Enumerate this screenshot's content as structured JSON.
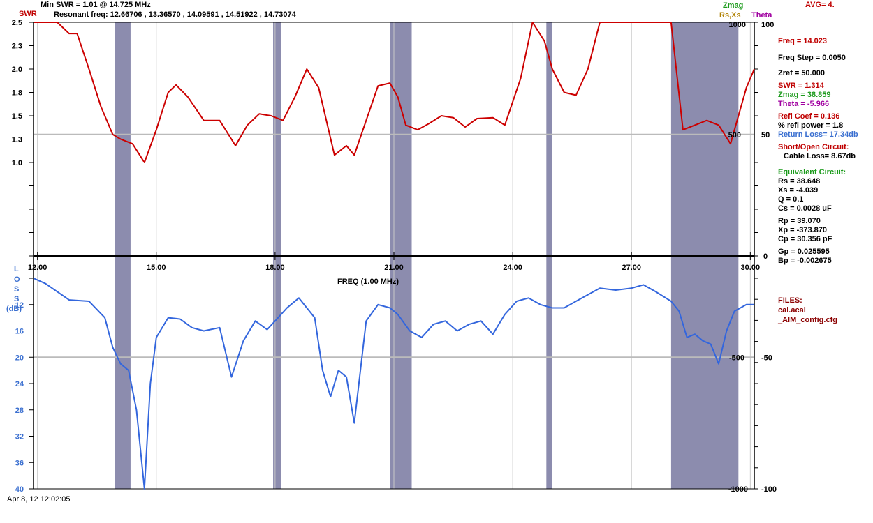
{
  "header": {
    "swr_tag": "SWR",
    "min_swr": "Min SWR =   1.01 @  14.725 MHz",
    "resonant": "Resonant freq:  12.66706 , 13.36570 , 14.09591 , 14.51922 , 14.73074",
    "zmag": "Zmag",
    "rsxs": "Rs,Xs",
    "theta": "Theta",
    "avg": "AVG=  4."
  },
  "footer": {
    "timestamp": "Apr 8, 12  12:02:05",
    "freq_axis_label": "FREQ (1.00 MHz)"
  },
  "loss_axis_label": [
    "L",
    "O",
    "S",
    "S",
    "(dB)"
  ],
  "panel": {
    "freq": "Freq = 14.023",
    "freq_step": "Freq Step = 0.0050",
    "zref": "Zref =   50.000",
    "swr": "SWR  =    1.314",
    "zmag": "Zmag =    38.859",
    "theta": "Theta =    -5.966",
    "refl_coef": "Refl Coef   = 0.136",
    "refl_power": "% refl power =  1.8",
    "return_loss": "Return Loss= 17.34db",
    "short_open": "Short/Open Circuit:",
    "cable_loss": "Cable Loss=  8.67db",
    "equiv": "Equivalent Circuit:",
    "rs": "Rs =    38.648",
    "xs": "Xs =    -4.039",
    "q": "Q  =  0.1",
    "cs": "Cs =   0.0028  uF",
    "rp": "Rp =    39.070",
    "xp": "Xp =  -373.870",
    "cp": "Cp =   30.356  pF",
    "gp": "Gp =  0.025595",
    "bp": "Bp =  -0.002675",
    "files": "FILES:",
    "file1": "cal.acal",
    "file2": "_AIM_config.cfg"
  },
  "chart_data": {
    "type": "line",
    "xlabel": "FREQ (1.00 MHz)",
    "xlim": [
      11.9,
      30.1
    ],
    "x_ticks": [
      "12.00",
      "15.00",
      "18.00",
      "21.00",
      "24.00",
      "27.00",
      "30.00"
    ],
    "bands": [
      [
        13.95,
        14.35
      ],
      [
        17.95,
        18.15
      ],
      [
        20.9,
        21.45
      ],
      [
        24.85,
        24.99
      ],
      [
        28.0,
        29.7
      ]
    ],
    "swr": {
      "ylabel": "SWR",
      "ylim": [
        0,
        2.5
      ],
      "y_ticks": [
        "2.5",
        "2.3",
        "2.0",
        "1.8",
        "1.5",
        "1.3",
        "1.0"
      ],
      "ref_line": 1.3,
      "series": [
        {
          "name": "SWR",
          "color": "#cc0000",
          "x": [
            11.9,
            12.5,
            12.8,
            13.0,
            13.3,
            13.6,
            13.9,
            14.1,
            14.4,
            14.7,
            15.0,
            15.3,
            15.5,
            15.8,
            16.2,
            16.6,
            17.0,
            17.3,
            17.6,
            17.9,
            18.2,
            18.5,
            18.8,
            19.1,
            19.5,
            19.8,
            20.0,
            20.3,
            20.6,
            20.9,
            21.1,
            21.3,
            21.6,
            21.9,
            22.2,
            22.5,
            22.8,
            23.1,
            23.5,
            23.8,
            24.2,
            24.5,
            24.8,
            25.0,
            25.3,
            25.6,
            25.9,
            26.2,
            26.6,
            27.0,
            28.0,
            28.3,
            28.6,
            28.9,
            29.2,
            29.5,
            29.9,
            30.1
          ],
          "values": [
            2.5,
            2.5,
            2.38,
            2.38,
            2.0,
            1.6,
            1.3,
            1.25,
            1.2,
            1.0,
            1.35,
            1.75,
            1.83,
            1.7,
            1.45,
            1.45,
            1.18,
            1.4,
            1.52,
            1.5,
            1.45,
            1.7,
            2.0,
            1.8,
            1.08,
            1.18,
            1.08,
            1.45,
            1.82,
            1.85,
            1.7,
            1.4,
            1.35,
            1.42,
            1.5,
            1.48,
            1.38,
            1.47,
            1.48,
            1.4,
            1.9,
            2.5,
            2.3,
            2.0,
            1.75,
            1.72,
            2.0,
            2.5,
            2.5,
            2.5,
            2.5,
            1.35,
            1.4,
            1.45,
            1.4,
            1.2,
            1.8,
            2.0
          ]
        }
      ]
    },
    "return_loss": {
      "ylabel": "LOSS (dB)",
      "ylim": [
        40,
        8
      ],
      "y_ticks": [
        "12",
        "16",
        "20",
        "24",
        "28",
        "32",
        "36",
        "40"
      ],
      "ref_line": 20,
      "series": [
        {
          "name": "Return Loss",
          "color": "#3366dd",
          "x": [
            11.9,
            12.2,
            12.8,
            13.3,
            13.7,
            13.9,
            14.1,
            14.3,
            14.5,
            14.7,
            14.85,
            15.0,
            15.3,
            15.6,
            15.9,
            16.2,
            16.6,
            16.9,
            17.2,
            17.5,
            17.8,
            18.0,
            18.3,
            18.6,
            19.0,
            19.2,
            19.4,
            19.6,
            19.8,
            20.0,
            20.3,
            20.6,
            20.9,
            21.1,
            21.4,
            21.7,
            22.0,
            22.3,
            22.6,
            22.9,
            23.2,
            23.5,
            23.8,
            24.1,
            24.4,
            24.7,
            25.0,
            25.3,
            25.6,
            25.9,
            26.2,
            26.6,
            27.0,
            27.3,
            27.6,
            28.0,
            28.2,
            28.4,
            28.6,
            28.8,
            29.0,
            29.2,
            29.4,
            29.6,
            29.9,
            30.1
          ],
          "values": [
            8.0,
            8.8,
            11.3,
            11.5,
            14.0,
            18.5,
            21.0,
            22.0,
            28.0,
            40.0,
            24.0,
            17.0,
            14.0,
            14.2,
            15.5,
            16.0,
            15.5,
            23.0,
            17.5,
            14.5,
            15.8,
            14.5,
            12.5,
            11.0,
            14.0,
            22.0,
            26.0,
            22.0,
            23.0,
            30.0,
            14.5,
            12.0,
            12.5,
            13.5,
            16.0,
            17.0,
            15.0,
            14.5,
            16.0,
            15.0,
            14.5,
            16.5,
            13.5,
            11.5,
            11.0,
            12.0,
            12.5,
            12.5,
            11.5,
            10.5,
            9.5,
            9.8,
            9.5,
            9.0,
            10.0,
            11.5,
            13.0,
            17.0,
            16.5,
            17.5,
            18.0,
            21.0,
            16.0,
            13.0,
            12.0,
            12.0
          ]
        }
      ]
    },
    "right_axes": {
      "inner_top": [
        "1000",
        "500",
        "0",
        "-500",
        "-1000"
      ],
      "outer_top": [
        "100",
        "50",
        "0",
        "-50",
        "-100"
      ]
    }
  }
}
